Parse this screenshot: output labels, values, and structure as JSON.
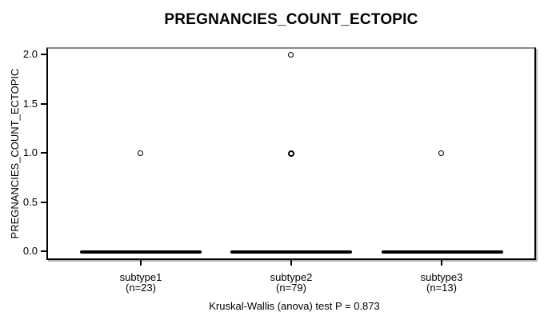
{
  "title": "PREGNANCIES_COUNT_ECTOPIC",
  "caption": "Kruskal-Wallis (anova) test P = 0.873",
  "y_axis": {
    "label": "PREGNANCIES_COUNT_ECTOPIC",
    "ticks": [
      "2.0",
      "1.5",
      "1.0",
      "0.5",
      "0.0"
    ]
  },
  "groups": [
    {
      "name": "subtype1",
      "n_label": "(n=23)"
    },
    {
      "name": "subtype2",
      "n_label": "(n=79)"
    },
    {
      "name": "subtype3",
      "n_label": "(n=13)"
    }
  ],
  "colors": {
    "foreground": "#000000",
    "background": "#ffffff",
    "box_frame_top": "#8a8a8a",
    "box_frame_shadow": "#b4b4b4"
  },
  "chart_data": {
    "type": "boxplot",
    "title": "PREGNANCIES_COUNT_ECTOPIC",
    "xlabel": "",
    "ylabel": "PREGNANCIES_COUNT_ECTOPIC",
    "categories": [
      "subtype1",
      "subtype2",
      "subtype3"
    ],
    "sample_sizes": [
      23,
      79,
      13
    ],
    "yticks": [
      0.0,
      0.5,
      1.0,
      1.5,
      2.0
    ],
    "ylim": [
      0.0,
      2.0
    ],
    "grid": false,
    "legend": false,
    "boxes": [
      {
        "category": "subtype1",
        "whisker_low": 0,
        "q1": 0,
        "median": 0,
        "q3": 0,
        "whisker_high": 0,
        "outliers": [
          1
        ]
      },
      {
        "category": "subtype2",
        "whisker_low": 0,
        "q1": 0,
        "median": 0,
        "q3": 0,
        "whisker_high": 0,
        "outliers": [
          1,
          1,
          2
        ],
        "note": "outlier circle at 1.0 drawn bold due to overplotting"
      },
      {
        "category": "subtype3",
        "whisker_low": 0,
        "q1": 0,
        "median": 0,
        "q3": 0,
        "whisker_high": 0,
        "outliers": [
          1
        ]
      }
    ],
    "annotation": "Kruskal-Wallis (anova) test P = 0.873",
    "statistical_test": {
      "name": "Kruskal-Wallis (anova)",
      "p_value": 0.873
    }
  }
}
